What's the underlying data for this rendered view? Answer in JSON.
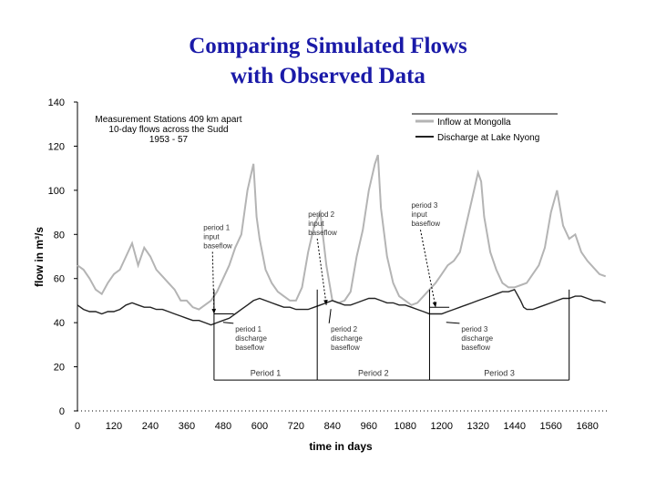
{
  "slide": {
    "title_line1": "Comparing Simulated Flows",
    "title_line2": "with Observed Data"
  },
  "chart_data": {
    "type": "line",
    "ylabel": "flow in m³/s",
    "xlabel": "time in days",
    "ylim": [
      0,
      140
    ],
    "xlim": [
      0,
      1750
    ],
    "y_ticks": [
      0,
      20,
      40,
      60,
      80,
      100,
      120,
      140
    ],
    "x_ticks": [
      0,
      120,
      240,
      360,
      480,
      600,
      720,
      840,
      960,
      1080,
      1200,
      1320,
      1440,
      1560,
      1680
    ],
    "grid": false,
    "legend_placement": "top-right",
    "info_text": [
      "Measurement Stations 409 km apart",
      "10-day flows across the Sudd",
      "1953 - 57"
    ],
    "series": [
      {
        "name": "Inflow at Mongolla",
        "color": "#b4b4b4",
        "x": [
          0,
          20,
          40,
          60,
          80,
          100,
          120,
          140,
          160,
          180,
          200,
          220,
          240,
          260,
          280,
          300,
          320,
          340,
          360,
          380,
          400,
          420,
          440,
          460,
          480,
          500,
          520,
          540,
          560,
          570,
          580,
          590,
          600,
          620,
          640,
          660,
          680,
          700,
          720,
          740,
          760,
          780,
          800,
          820,
          840,
          860,
          880,
          900,
          920,
          940,
          960,
          980,
          990,
          1000,
          1020,
          1040,
          1060,
          1080,
          1100,
          1120,
          1140,
          1160,
          1180,
          1200,
          1220,
          1240,
          1260,
          1280,
          1300,
          1320,
          1330,
          1340,
          1360,
          1380,
          1400,
          1420,
          1440,
          1460,
          1480,
          1500,
          1520,
          1540,
          1560,
          1580,
          1600,
          1620,
          1640,
          1660,
          1680,
          1700,
          1720,
          1740
        ],
        "y": [
          66,
          64,
          60,
          55,
          53,
          58,
          62,
          64,
          70,
          76,
          66,
          74,
          70,
          64,
          61,
          58,
          55,
          50,
          50,
          47,
          46,
          48,
          50,
          54,
          60,
          66,
          74,
          80,
          100,
          106,
          112,
          88,
          78,
          64,
          58,
          54,
          52,
          50,
          50,
          56,
          72,
          84,
          90,
          66,
          50,
          49,
          50,
          54,
          70,
          82,
          100,
          112,
          116,
          92,
          70,
          58,
          52,
          50,
          48,
          49,
          52,
          55,
          58,
          62,
          66,
          68,
          72,
          84,
          96,
          108,
          104,
          88,
          72,
          64,
          58,
          56,
          56,
          57,
          58,
          62,
          66,
          74,
          90,
          100,
          84,
          78,
          80,
          72,
          68,
          65,
          62,
          61
        ]
      },
      {
        "name": "Discharge at Lake Nyong",
        "color": "#222222",
        "x": [
          0,
          20,
          40,
          60,
          80,
          100,
          120,
          140,
          160,
          180,
          200,
          220,
          240,
          260,
          280,
          300,
          320,
          340,
          360,
          380,
          400,
          420,
          440,
          460,
          480,
          500,
          520,
          540,
          560,
          580,
          600,
          620,
          640,
          660,
          680,
          700,
          720,
          740,
          760,
          780,
          800,
          820,
          840,
          860,
          880,
          900,
          920,
          940,
          960,
          980,
          1000,
          1020,
          1040,
          1060,
          1080,
          1100,
          1120,
          1140,
          1160,
          1180,
          1200,
          1220,
          1240,
          1260,
          1280,
          1300,
          1320,
          1340,
          1360,
          1380,
          1400,
          1420,
          1440,
          1460,
          1470,
          1480,
          1500,
          1520,
          1540,
          1560,
          1580,
          1600,
          1620,
          1640,
          1660,
          1680,
          1700,
          1720,
          1740
        ],
        "y": [
          48,
          46,
          45,
          45,
          44,
          45,
          45,
          46,
          48,
          49,
          48,
          47,
          47,
          46,
          46,
          45,
          44,
          43,
          42,
          41,
          41,
          40,
          39,
          40,
          41,
          42,
          44,
          46,
          48,
          50,
          51,
          50,
          49,
          48,
          47,
          47,
          46,
          46,
          46,
          47,
          48,
          49,
          50,
          49,
          48,
          48,
          49,
          50,
          51,
          51,
          50,
          49,
          49,
          48,
          48,
          47,
          46,
          45,
          44,
          44,
          44,
          45,
          46,
          47,
          48,
          49,
          50,
          51,
          52,
          53,
          54,
          54,
          55,
          50,
          47,
          46,
          46,
          47,
          48,
          49,
          50,
          51,
          51,
          52,
          52,
          51,
          50,
          50,
          49
        ]
      }
    ],
    "annotations": {
      "arrow_labels": [
        {
          "lines": [
            "period 1",
            "input",
            "baseflow"
          ],
          "x": 415,
          "y": 82,
          "target_x": 450,
          "target_y": 44
        },
        {
          "lines": [
            "period 2",
            "input",
            "baseflow"
          ],
          "x": 760,
          "y": 88,
          "target_x": 820,
          "target_y": 48
        },
        {
          "lines": [
            "period 3",
            "input",
            "baseflow"
          ],
          "x": 1100,
          "y": 92,
          "target_x": 1180,
          "target_y": 47
        }
      ],
      "discharge_labels": [
        {
          "lines": [
            "period 1",
            "discharge",
            "baseflow"
          ],
          "x": 520,
          "y": 36,
          "target_x": 480,
          "target_y": 41
        },
        {
          "lines": [
            "period 2",
            "discharge",
            "baseflow"
          ],
          "x": 835,
          "y": 36,
          "target_x": 835,
          "target_y": 47
        },
        {
          "lines": [
            "period 3",
            "discharge",
            "baseflow"
          ],
          "x": 1265,
          "y": 36,
          "target_x": 1215,
          "target_y": 41
        }
      ],
      "period_labels": [
        "Period 1",
        "Period 2",
        "Period 3"
      ],
      "period_bounds": [
        {
          "start": 450,
          "end": 790
        },
        {
          "start": 790,
          "end": 1160
        },
        {
          "start": 1160,
          "end": 1620
        }
      ],
      "period_label_y": 16,
      "period_line_y": 14,
      "marker_lines": [
        {
          "x": 450,
          "x2": 515,
          "y": 44
        },
        {
          "x": 1160,
          "x2": 1225,
          "y": 47
        }
      ]
    }
  }
}
